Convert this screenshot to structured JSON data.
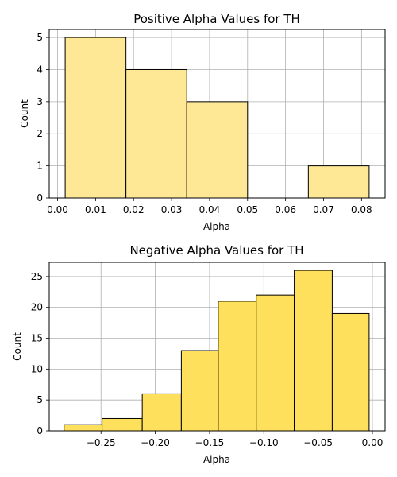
{
  "chart_data": [
    {
      "type": "bar",
      "title": "Positive Alpha Values for TH",
      "xlabel": "Alpha",
      "ylabel": "Count",
      "color": "#fee896",
      "edge_color": "#000000",
      "grid": true,
      "xlim": [
        -0.0022,
        0.0862
      ],
      "ylim": [
        0,
        5.25
      ],
      "xticks": [
        "0.00",
        "0.01",
        "0.02",
        "0.03",
        "0.04",
        "0.05",
        "0.06",
        "0.07",
        "0.08"
      ],
      "yticks": [
        "0",
        "1",
        "2",
        "3",
        "4",
        "5"
      ],
      "bins": [
        {
          "x0": 0.002,
          "x1": 0.018,
          "value": 5
        },
        {
          "x0": 0.018,
          "x1": 0.034,
          "value": 4
        },
        {
          "x0": 0.034,
          "x1": 0.05,
          "value": 3
        },
        {
          "x0": 0.05,
          "x1": 0.066,
          "value": 0
        },
        {
          "x0": 0.066,
          "x1": 0.082,
          "value": 1
        }
      ]
    },
    {
      "type": "bar",
      "title": "Negative Alpha Values for TH",
      "xlabel": "Alpha",
      "ylabel": "Count",
      "color": "#ffe05c",
      "edge_color": "#000000",
      "grid": true,
      "xlim": [
        -0.2977,
        0.0117
      ],
      "ylim": [
        0,
        27.3
      ],
      "xticks": [
        "−0.25",
        "−0.20",
        "−0.15",
        "−0.10",
        "−0.05",
        "0.00"
      ],
      "yticks": [
        "0",
        "5",
        "10",
        "15",
        "20",
        "25"
      ],
      "bins": [
        {
          "x0": -0.284,
          "x1": -0.249,
          "value": 1
        },
        {
          "x0": -0.249,
          "x1": -0.212,
          "value": 2
        },
        {
          "x0": -0.212,
          "x1": -0.176,
          "value": 6
        },
        {
          "x0": -0.176,
          "x1": -0.142,
          "value": 13
        },
        {
          "x0": -0.142,
          "x1": -0.107,
          "value": 21
        },
        {
          "x0": -0.107,
          "x1": -0.072,
          "value": 22
        },
        {
          "x0": -0.072,
          "x1": -0.037,
          "value": 26
        },
        {
          "x0": -0.037,
          "x1": -0.003,
          "value": 19
        }
      ]
    }
  ]
}
